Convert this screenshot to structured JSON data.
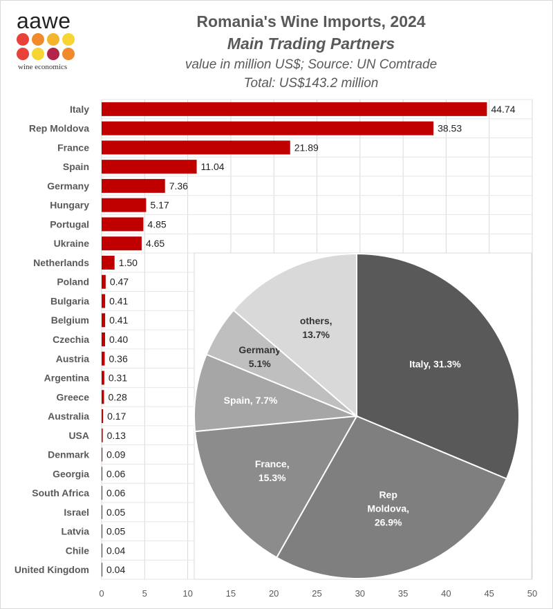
{
  "logo": {
    "word": "aawe",
    "subtitle": "wine economics",
    "dot_colors": [
      "#e8413a",
      "#f08a2b",
      "#f3b52c",
      "#f6d433",
      "#e8413a",
      "#f6d433",
      "#b2244a",
      "#f08a2b"
    ]
  },
  "chart_data": [
    {
      "type": "bar",
      "orientation": "horizontal",
      "title": "Romania's Wine Imports, 2024",
      "subtitle": "Main Trading Partners",
      "note": "value in million US$; Source: UN Comtrade",
      "total": "Total: US$143.2 million",
      "categories": [
        "Italy",
        "Rep Moldova",
        "France",
        "Spain",
        "Germany",
        "Hungary",
        "Portugal",
        "Ukraine",
        "Netherlands",
        "Poland",
        "Bulgaria",
        "Belgium",
        "Czechia",
        "Austria",
        "Argentina",
        "Greece",
        "Australia",
        "USA",
        "Denmark",
        "Georgia",
        "South Africa",
        "Israel",
        "Latvia",
        "Chile",
        "United Kingdom"
      ],
      "values": [
        44.74,
        38.53,
        21.89,
        11.04,
        7.36,
        5.17,
        4.85,
        4.65,
        1.5,
        0.47,
        0.41,
        0.41,
        0.4,
        0.36,
        0.31,
        0.28,
        0.17,
        0.13,
        0.09,
        0.06,
        0.06,
        0.05,
        0.05,
        0.04,
        0.04
      ],
      "value_labels": [
        "44.74",
        "38.53",
        "21.89",
        "11.04",
        "7.36",
        "5.17",
        "4.85",
        "4.65",
        "1.50",
        "0.47",
        "0.41",
        "0.41",
        "0.40",
        "0.36",
        "0.31",
        "0.28",
        "0.17",
        "0.13",
        "0.09",
        "0.06",
        "0.06",
        "0.05",
        "0.05",
        "0.04",
        "0.04"
      ],
      "xlim": [
        0,
        50
      ],
      "xticks": [
        "0",
        "5",
        "10",
        "15",
        "20",
        "25",
        "30",
        "35",
        "40",
        "45",
        "50"
      ],
      "bar_color": "#c00000",
      "grid": true
    },
    {
      "type": "pie",
      "slices": [
        {
          "name": "Italy",
          "label": [
            "Italy, 31.3%"
          ],
          "value": 31.3,
          "color": "#595959",
          "text_color": "#ffffff"
        },
        {
          "name": "Rep Moldova",
          "label": [
            "Rep",
            "Moldova,",
            "26.9%"
          ],
          "value": 26.9,
          "color": "#7f7f7f",
          "text_color": "#ffffff"
        },
        {
          "name": "France",
          "label": [
            "France,",
            "15.3%"
          ],
          "value": 15.3,
          "color": "#8c8c8c",
          "text_color": "#ffffff"
        },
        {
          "name": "Spain",
          "label": [
            "Spain, 7.7%"
          ],
          "value": 7.7,
          "color": "#a6a6a6",
          "text_color": "#ffffff"
        },
        {
          "name": "Germany",
          "label": [
            "Germany",
            "5.1%"
          ],
          "value": 5.1,
          "color": "#bfbfbf",
          "text_color": "#333333"
        },
        {
          "name": "others",
          "label": [
            "others,",
            "13.7%"
          ],
          "value": 13.7,
          "color": "#d9d9d9",
          "text_color": "#333333"
        }
      ]
    }
  ]
}
